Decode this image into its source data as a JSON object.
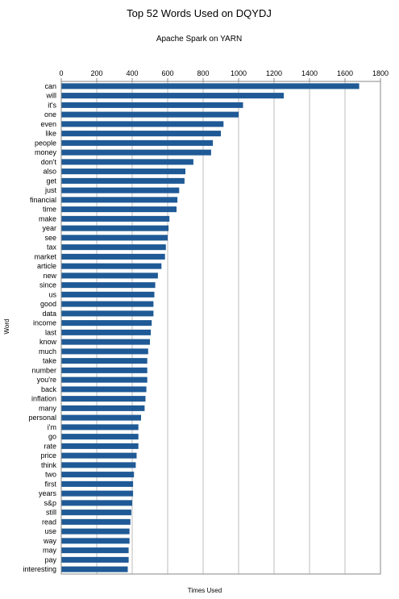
{
  "chart_data": {
    "type": "bar",
    "orientation": "horizontal",
    "title": "Top 52 Words Used on DQYDJ",
    "subtitle": "Apache Spark on YARN",
    "xlabel": "Times Used",
    "ylabel": "Word",
    "xlim": [
      0,
      1800
    ],
    "xticks": [
      0,
      200,
      400,
      600,
      800,
      1000,
      1200,
      1400,
      1600,
      1800
    ],
    "grid": true,
    "legend": "none",
    "bar_color": "#1f5a96",
    "categories": [
      "can",
      "will",
      "it's",
      "one",
      "even",
      "like",
      "people",
      "money",
      "don't",
      "also",
      "get",
      "just",
      "financial",
      "time",
      "make",
      "year",
      "see",
      "tax",
      "market",
      "article",
      "new",
      "since",
      "us",
      "good",
      "data",
      "income",
      "last",
      "know",
      "much",
      "take",
      "number",
      "you're",
      "back",
      "inflation",
      "many",
      "personal",
      "i'm",
      "go",
      "rate",
      "price",
      "think",
      "two",
      "first",
      "years",
      "s&p",
      "still",
      "read",
      "use",
      "way",
      "may",
      "pay",
      "interesting"
    ],
    "values": [
      1680,
      1255,
      1025,
      1000,
      915,
      900,
      855,
      845,
      745,
      700,
      695,
      665,
      655,
      650,
      610,
      605,
      600,
      590,
      585,
      565,
      545,
      530,
      525,
      520,
      520,
      510,
      505,
      500,
      490,
      485,
      485,
      485,
      480,
      475,
      470,
      450,
      435,
      435,
      435,
      425,
      420,
      410,
      405,
      405,
      400,
      395,
      390,
      385,
      385,
      380,
      380,
      375
    ]
  }
}
